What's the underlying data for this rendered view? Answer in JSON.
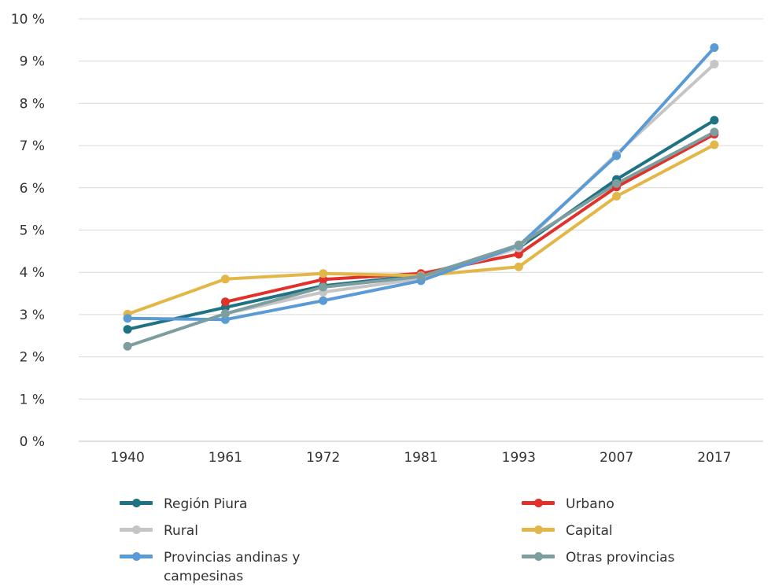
{
  "chart_data": {
    "type": "line",
    "title": "",
    "xlabel": "",
    "ylabel": "",
    "categories": [
      "1940",
      "1961",
      "1972",
      "1981",
      "1993",
      "2007",
      "2017"
    ],
    "y_ticks": [
      "0 %",
      "1 %",
      "2 %",
      "3 %",
      "4 %",
      "5 %",
      "6 %",
      "7 %",
      "8 %",
      "9 %",
      "10 %"
    ],
    "ylim": [
      0,
      10
    ],
    "grid": true,
    "legend_position": "bottom",
    "series": [
      {
        "name": "Región Piura",
        "color": "#1E7283",
        "values": [
          2.65,
          3.17,
          3.68,
          3.93,
          4.58,
          6.2,
          7.6
        ]
      },
      {
        "name": "Urbano",
        "color": "#E0312B",
        "values": [
          null,
          3.3,
          3.83,
          3.97,
          4.43,
          6.02,
          7.27
        ]
      },
      {
        "name": "Rural",
        "color": "#C5C5C5",
        "values": [
          null,
          3.02,
          3.53,
          3.85,
          4.58,
          6.8,
          8.93
        ]
      },
      {
        "name": "Capital",
        "color": "#E2B748",
        "values": [
          3.01,
          3.84,
          3.97,
          3.92,
          4.13,
          5.8,
          7.02
        ]
      },
      {
        "name": "Provincias andinas y campesinas",
        "color": "#5B9BD5",
        "values": [
          2.91,
          2.88,
          3.33,
          3.8,
          4.63,
          6.76,
          9.32
        ]
      },
      {
        "name": "Otras provincias",
        "color": "#7D9E9E",
        "values": [
          2.25,
          3.02,
          3.65,
          3.9,
          4.65,
          6.1,
          7.32
        ]
      }
    ]
  }
}
